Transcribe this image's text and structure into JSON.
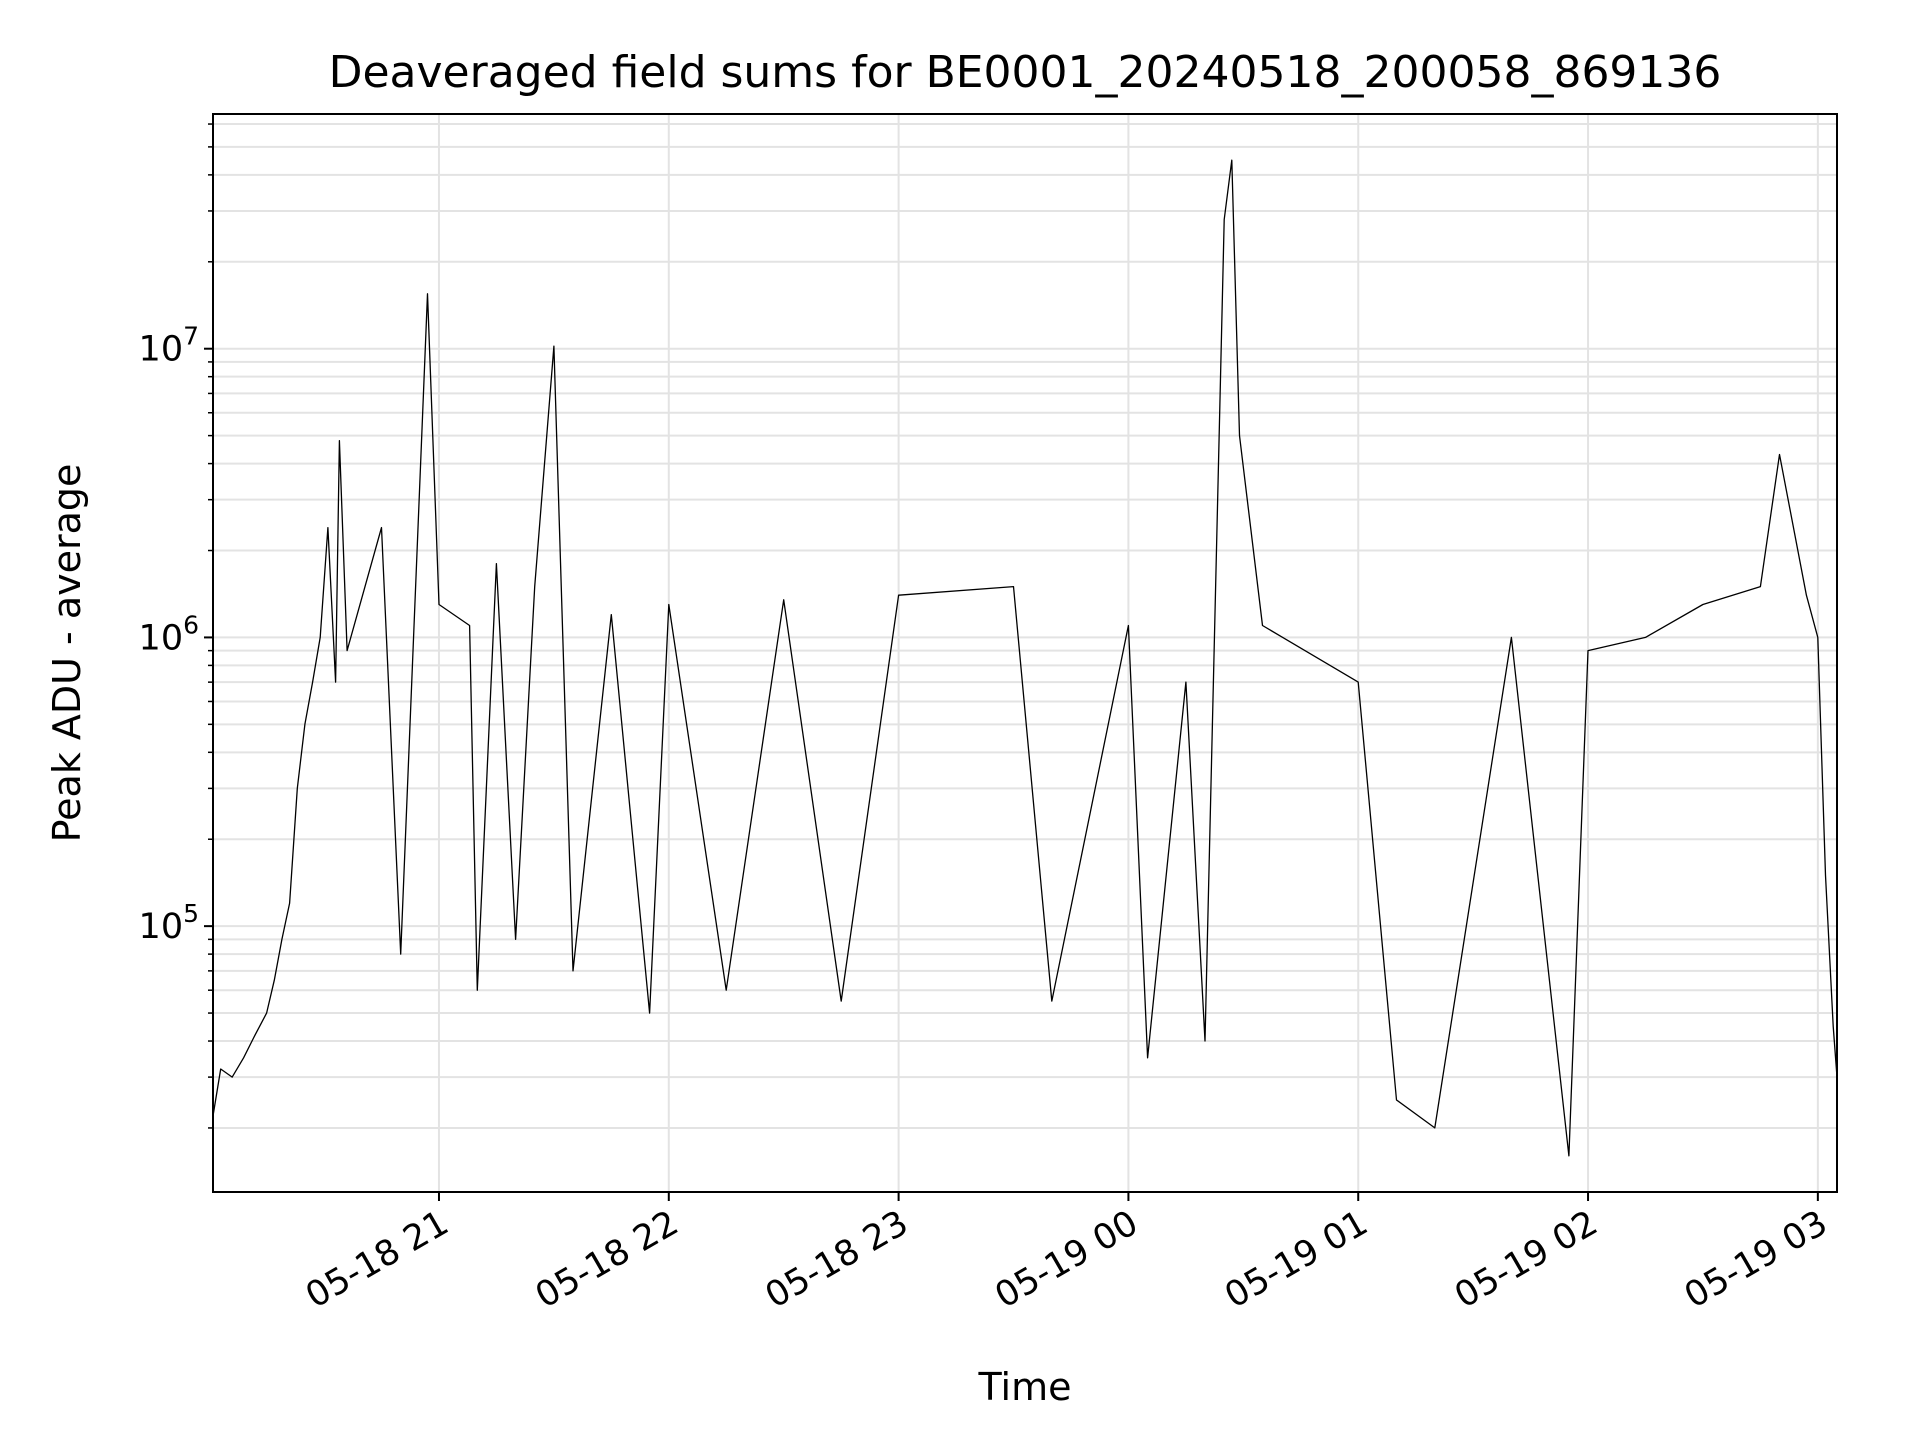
{
  "chart_data": {
    "type": "line",
    "title": "Deaveraged field sums for BE0001_20240518_200058_869136",
    "xlabel": "Time",
    "ylabel": "Peak ADU - average",
    "yscale": "log",
    "grid": true,
    "line_color": "#000000",
    "grid_color": "#e3e3e3",
    "xlim": [
      "2024-05-18 20:01",
      "2024-05-19 03:05"
    ],
    "ylim": [
      12000,
      65000000
    ],
    "x_ticks": [
      {
        "value": "2024-05-18 21:00",
        "label": "05-18 21"
      },
      {
        "value": "2024-05-18 22:00",
        "label": "05-18 22"
      },
      {
        "value": "2024-05-18 23:00",
        "label": "05-18 23"
      },
      {
        "value": "2024-05-19 00:00",
        "label": "05-19 00"
      },
      {
        "value": "2024-05-19 01:00",
        "label": "05-19 01"
      },
      {
        "value": "2024-05-19 02:00",
        "label": "05-19 02"
      },
      {
        "value": "2024-05-19 03:00",
        "label": "05-19 03"
      }
    ],
    "y_ticks": [
      {
        "value": 100000,
        "base": "10",
        "exp": "5"
      },
      {
        "value": 1000000,
        "base": "10",
        "exp": "6"
      },
      {
        "value": 10000000,
        "base": "10",
        "exp": "7"
      }
    ],
    "series": [
      {
        "values": [
          [
            "2024-05-18 20:01",
            22000
          ],
          [
            "2024-05-18 20:03",
            32000
          ],
          [
            "2024-05-18 20:06",
            30000
          ],
          [
            "2024-05-18 20:09",
            35000
          ],
          [
            "2024-05-18 20:12",
            42000
          ],
          [
            "2024-05-18 20:15",
            50000
          ],
          [
            "2024-05-18 20:17",
            65000
          ],
          [
            "2024-05-18 20:19",
            90000
          ],
          [
            "2024-05-18 20:21",
            120000
          ],
          [
            "2024-05-18 20:23",
            300000
          ],
          [
            "2024-05-18 20:25",
            500000
          ],
          [
            "2024-05-18 20:27",
            700000
          ],
          [
            "2024-05-18 20:29",
            1000000
          ],
          [
            "2024-05-18 20:31",
            2400000
          ],
          [
            "2024-05-18 20:33",
            700000
          ],
          [
            "2024-05-18 20:34",
            4800000
          ],
          [
            "2024-05-18 20:36",
            900000
          ],
          [
            "2024-05-18 20:45",
            2400000
          ],
          [
            "2024-05-18 20:50",
            80000
          ],
          [
            "2024-05-18 21:00",
            1300000
          ],
          [
            "2024-05-18 21:10",
            60000
          ],
          [
            "2024-05-18 20:57",
            15500000
          ],
          [
            "2024-05-18 21:08",
            1100000
          ],
          [
            "2024-05-18 21:15",
            1800000
          ],
          [
            "2024-05-18 21:20",
            90000
          ],
          [
            "2024-05-18 21:25",
            1500000
          ],
          [
            "2024-05-18 21:30",
            10200000
          ],
          [
            "2024-05-18 21:35",
            70000
          ],
          [
            "2024-05-18 21:45",
            1200000
          ],
          [
            "2024-05-18 21:55",
            50000
          ],
          [
            "2024-05-18 22:00",
            1300000
          ],
          [
            "2024-05-18 22:15",
            60000
          ],
          [
            "2024-05-18 22:30",
            1350000
          ],
          [
            "2024-05-18 22:45",
            55000
          ],
          [
            "2024-05-18 23:00",
            1400000
          ],
          [
            "2024-05-18 23:30",
            1500000
          ],
          [
            "2024-05-18 23:40",
            55000
          ],
          [
            "2024-05-19 00:00",
            1100000
          ],
          [
            "2024-05-19 00:05",
            35000
          ],
          [
            "2024-05-19 00:15",
            700000
          ],
          [
            "2024-05-19 00:20",
            40000
          ],
          [
            "2024-05-19 00:25",
            28000000
          ],
          [
            "2024-05-19 00:27",
            45000000
          ],
          [
            "2024-05-19 00:29",
            5000000
          ],
          [
            "2024-05-19 00:35",
            1100000
          ],
          [
            "2024-05-19 01:00",
            700000
          ],
          [
            "2024-05-19 01:10",
            25000
          ],
          [
            "2024-05-19 01:20",
            20000
          ],
          [
            "2024-05-19 01:40",
            1000000
          ],
          [
            "2024-05-19 01:55",
            16000
          ],
          [
            "2024-05-19 02:00",
            900000
          ],
          [
            "2024-05-19 02:15",
            1000000
          ],
          [
            "2024-05-19 02:30",
            1300000
          ],
          [
            "2024-05-19 02:45",
            1500000
          ],
          [
            "2024-05-19 02:50",
            4300000
          ],
          [
            "2024-05-19 02:57",
            1400000
          ],
          [
            "2024-05-19 03:00",
            1000000
          ],
          [
            "2024-05-19 03:02",
            150000
          ],
          [
            "2024-05-19 03:04",
            45000
          ],
          [
            "2024-05-19 03:05",
            30000
          ]
        ]
      }
    ]
  }
}
